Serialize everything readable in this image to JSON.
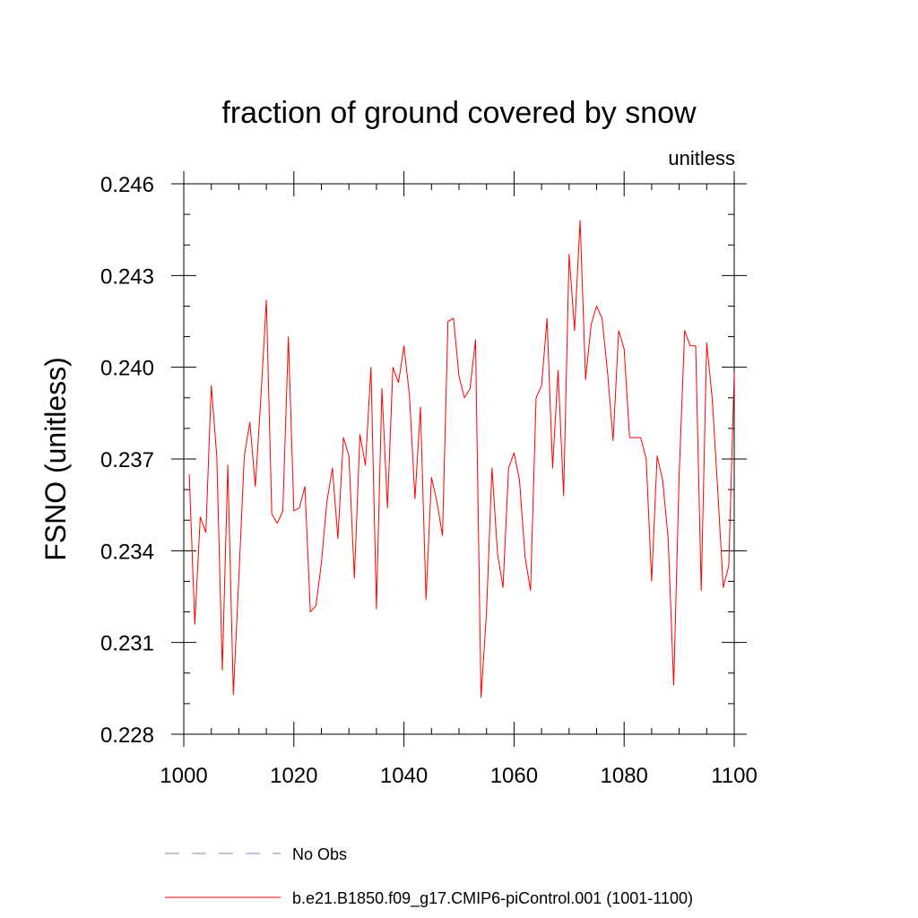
{
  "chart_data": {
    "type": "line",
    "title": "fraction of ground covered by snow",
    "units": "unitless",
    "ylabel": "FSNO  (unitless)",
    "xlabel": "",
    "xlim": [
      1000,
      1100
    ],
    "ylim": [
      0.228,
      0.246
    ],
    "xticks": [
      1000,
      1020,
      1040,
      1060,
      1080,
      1100
    ],
    "yticks": [
      0.228,
      0.231,
      0.234,
      0.237,
      0.24,
      0.243,
      0.246
    ],
    "ytick_labels": [
      "0.228",
      "0.231",
      "0.234",
      "0.237",
      "0.240",
      "0.243",
      "0.246"
    ],
    "grid": false,
    "legend_position": "bottom",
    "series": [
      {
        "name": "No Obs",
        "style": "dashed",
        "color": "#8080c0",
        "x": [],
        "values": []
      },
      {
        "name": "b.e21.B1850.f09_g17.CMIP6-piControl.001 (1001-1100)",
        "style": "solid",
        "color": "#ff0000",
        "x": [
          1001,
          1002,
          1003,
          1004,
          1005,
          1006,
          1007,
          1008,
          1009,
          1010,
          1011,
          1012,
          1013,
          1014,
          1015,
          1016,
          1017,
          1018,
          1019,
          1020,
          1021,
          1022,
          1023,
          1024,
          1025,
          1026,
          1027,
          1028,
          1029,
          1030,
          1031,
          1032,
          1033,
          1034,
          1035,
          1036,
          1037,
          1038,
          1039,
          1040,
          1041,
          1042,
          1043,
          1044,
          1045,
          1046,
          1047,
          1048,
          1049,
          1050,
          1051,
          1052,
          1053,
          1054,
          1055,
          1056,
          1057,
          1058,
          1059,
          1060,
          1061,
          1062,
          1063,
          1064,
          1065,
          1066,
          1067,
          1068,
          1069,
          1070,
          1071,
          1072,
          1073,
          1074,
          1075,
          1076,
          1077,
          1078,
          1079,
          1080,
          1081,
          1082,
          1083,
          1084,
          1085,
          1086,
          1087,
          1088,
          1089,
          1090,
          1091,
          1092,
          1093,
          1094,
          1095,
          1096,
          1097,
          1098,
          1099,
          1100
        ],
        "values": [
          0.2365,
          0.2316,
          0.2351,
          0.2346,
          0.2394,
          0.2371,
          0.2301,
          0.2368,
          0.2293,
          0.2331,
          0.2371,
          0.2382,
          0.2361,
          0.239,
          0.2422,
          0.2352,
          0.2349,
          0.2353,
          0.241,
          0.2353,
          0.2354,
          0.2361,
          0.232,
          0.2322,
          0.2336,
          0.2356,
          0.2367,
          0.2344,
          0.2377,
          0.2371,
          0.2331,
          0.2378,
          0.2368,
          0.24,
          0.2321,
          0.2393,
          0.2354,
          0.24,
          0.2395,
          0.2407,
          0.2391,
          0.2357,
          0.2387,
          0.2324,
          0.2364,
          0.2356,
          0.2345,
          0.2415,
          0.2416,
          0.2397,
          0.239,
          0.2393,
          0.2409,
          0.2292,
          0.232,
          0.2367,
          0.2339,
          0.2328,
          0.2367,
          0.2372,
          0.2363,
          0.2338,
          0.2327,
          0.239,
          0.2394,
          0.2416,
          0.2367,
          0.2399,
          0.2358,
          0.2437,
          0.2412,
          0.2448,
          0.2396,
          0.2414,
          0.242,
          0.2416,
          0.2398,
          0.2376,
          0.2412,
          0.2406,
          0.2377,
          0.2377,
          0.2377,
          0.237,
          0.233,
          0.2371,
          0.2363,
          0.2344,
          0.2296,
          0.2365,
          0.2412,
          0.2407,
          0.2407,
          0.2327,
          0.2408,
          0.239,
          0.236,
          0.2328,
          0.2335,
          0.2398
        ]
      }
    ]
  }
}
